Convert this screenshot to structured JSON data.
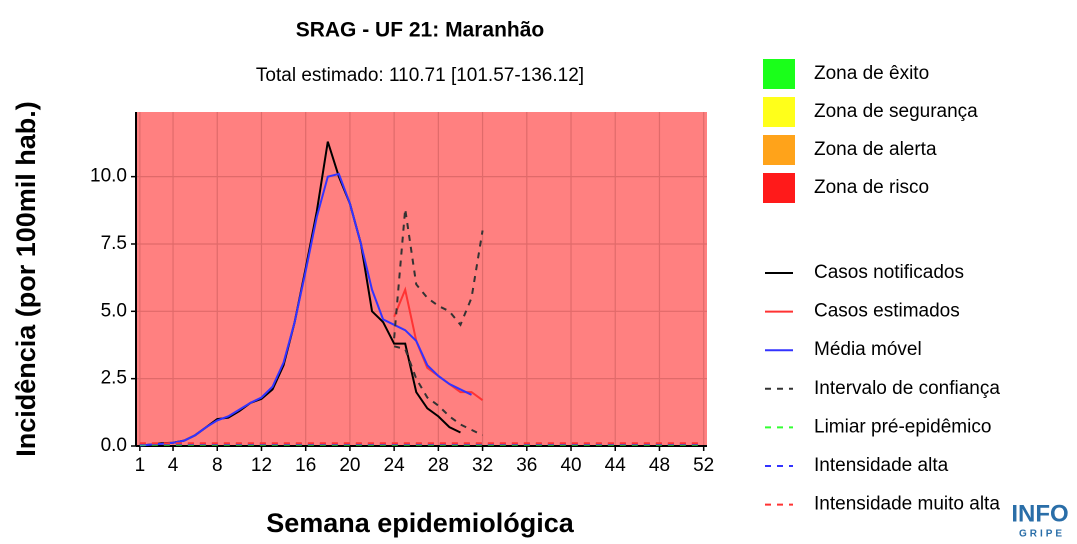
{
  "chart_data": {
    "type": "line",
    "title": "SRAG - UF 21: Maranhão",
    "subtitle": "Total estimado: 110.71 [101.57-136.12]",
    "x_label": "Semana epidemiológica",
    "y_label": "Incidência (por 100mil hab.)",
    "xlim": [
      0.65,
      52.3
    ],
    "ylim": [
      0,
      12.4
    ],
    "xticks": [
      1,
      4,
      8,
      12,
      16,
      20,
      24,
      28,
      32,
      36,
      40,
      44,
      48,
      52
    ],
    "yticks": [
      {
        "value": 0,
        "label": "0.0"
      },
      {
        "value": 2.5,
        "label": "2.5"
      },
      {
        "value": 5,
        "label": "5.0"
      },
      {
        "value": 7.5,
        "label": "7.5"
      },
      {
        "value": 10,
        "label": "10.0"
      }
    ],
    "grid": true,
    "background_color": "#ff8080",
    "zones": [
      {
        "name": "Zona de êxito",
        "color": "#1aff1a"
      },
      {
        "name": "Zona de segurança",
        "color": "#ffff1a"
      },
      {
        "name": "Zona de alerta",
        "color": "#ffa31a"
      },
      {
        "name": "Zona de risco",
        "color": "#ff1a1a"
      }
    ],
    "series": [
      {
        "name": "Casos notificados",
        "color": "#000000",
        "style": "solid",
        "x": [
          1,
          2,
          3,
          4,
          5,
          6,
          7,
          8,
          9,
          10,
          11,
          12,
          13,
          14,
          15,
          16,
          17,
          18,
          19,
          20,
          21,
          22,
          23,
          24,
          25,
          26,
          27,
          28,
          29,
          30
        ],
        "values": [
          0.02,
          0.05,
          0.1,
          0.12,
          0.2,
          0.4,
          0.7,
          1.0,
          1.05,
          1.3,
          1.6,
          1.75,
          2.1,
          3.0,
          4.6,
          6.6,
          8.7,
          11.3,
          10.0,
          9.0,
          7.5,
          5.0,
          4.6,
          3.8,
          3.8,
          2.0,
          1.4,
          1.1,
          0.7,
          0.5
        ]
      },
      {
        "name": "Casos estimados",
        "color": "#ff3333",
        "style": "solid",
        "x": [
          24,
          25,
          26,
          27,
          28,
          29,
          30,
          31,
          32
        ],
        "values": [
          4.8,
          5.8,
          3.9,
          2.9,
          2.6,
          2.3,
          2.0,
          2.0,
          1.7
        ]
      },
      {
        "name": "Média móvel",
        "color": "#3333ff",
        "style": "solid",
        "x": [
          1,
          2,
          3,
          4,
          5,
          6,
          7,
          8,
          9,
          10,
          11,
          12,
          13,
          14,
          15,
          16,
          17,
          18,
          19,
          20,
          21,
          22,
          23,
          24,
          25,
          26,
          27,
          28,
          29,
          30,
          31
        ],
        "values": [
          0.02,
          0.05,
          0.08,
          0.12,
          0.2,
          0.4,
          0.7,
          0.95,
          1.1,
          1.35,
          1.6,
          1.8,
          2.2,
          3.1,
          4.6,
          6.5,
          8.5,
          10.0,
          10.1,
          9.0,
          7.5,
          5.8,
          4.7,
          4.5,
          4.3,
          3.9,
          3.0,
          2.6,
          2.3,
          2.1,
          1.9
        ]
      },
      {
        "name": "Intervalo de confiança",
        "color": "#333333",
        "style": "dashed",
        "x": [
          24,
          25,
          26,
          27,
          28,
          29,
          30,
          31,
          32
        ],
        "values": [
          4.0,
          8.8,
          6.0,
          5.5,
          5.2,
          5.0,
          4.5,
          5.5,
          8.0
        ]
      },
      {
        "name": null,
        "color": "#333333",
        "style": "dashed",
        "x": [
          24,
          25,
          26,
          27,
          28,
          29,
          30,
          31,
          32
        ],
        "values": [
          3.7,
          3.6,
          2.5,
          1.8,
          1.5,
          1.1,
          0.8,
          0.6,
          0.4
        ]
      },
      {
        "name": "Limiar pré-epidêmico",
        "color": "#33ff33",
        "style": "dashed",
        "x": [
          1,
          52
        ],
        "values": [
          0.05,
          0.05
        ]
      },
      {
        "name": "Intensidade alta",
        "color": "#3333ff",
        "style": "dashed",
        "x": [
          1,
          52
        ],
        "values": [
          0.08,
          0.08
        ]
      },
      {
        "name": "Intensidade muito alta",
        "color": "#ff3333",
        "style": "dashed",
        "x": [
          1,
          52
        ],
        "values": [
          0.1,
          0.1
        ]
      }
    ],
    "logo": {
      "top": "INFO",
      "bottom": "GRIPE"
    }
  }
}
